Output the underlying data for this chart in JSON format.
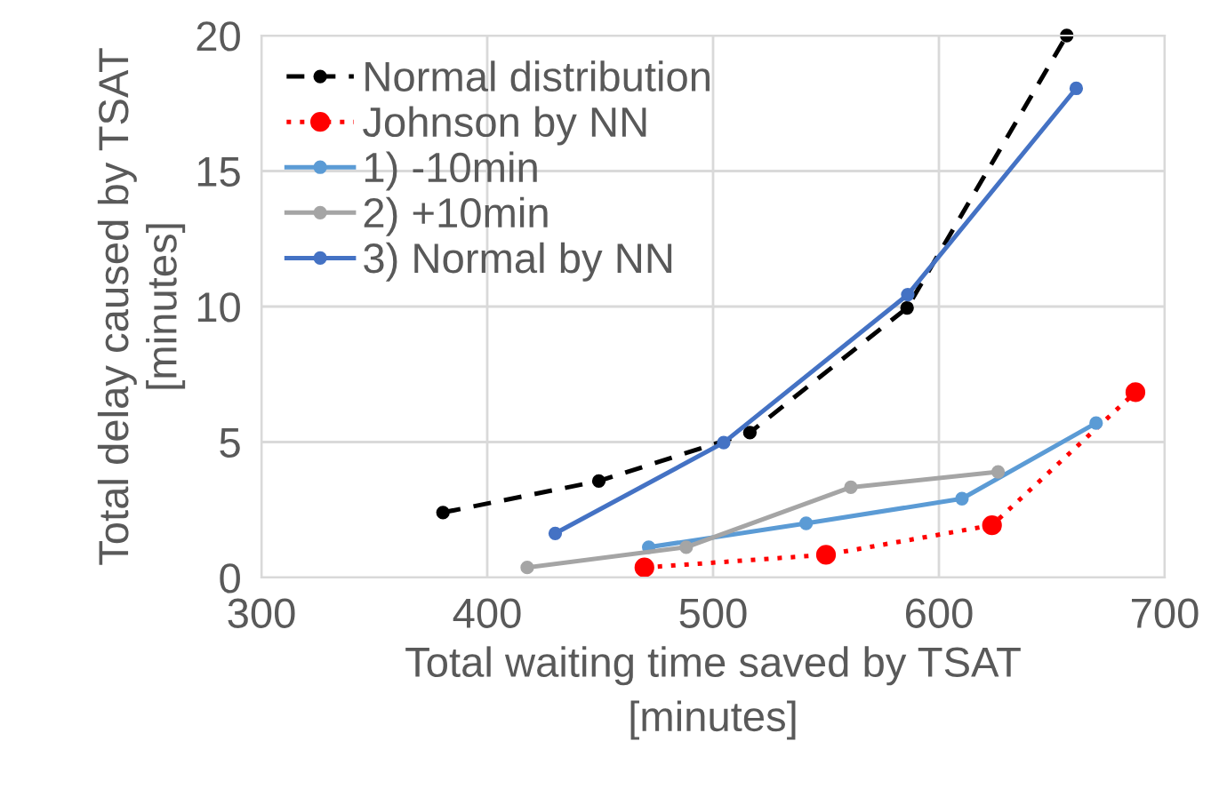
{
  "chart_data": {
    "type": "line",
    "xlabel": "Total waiting time saved by TSAT\n[minutes]",
    "ylabel": "Total delay caused by TSAT\n[minutes]",
    "xlim": [
      300,
      700
    ],
    "xticks": [
      300,
      400,
      500,
      600,
      700
    ],
    "ylim": [
      0,
      20
    ],
    "yticks": [
      0,
      5,
      10,
      15,
      20
    ],
    "grid": true,
    "legend": "top left",
    "marker": "circle",
    "series": [
      {
        "name": "Normal distribution",
        "color": "#000000",
        "line_style": "dashed",
        "x": [
          380.4,
          449.4,
          516.3,
          585.9,
          656.6
        ],
        "values": [
          2.4,
          3.56,
          5.35,
          9.95,
          20
        ]
      },
      {
        "name": "Johnson by NN",
        "color": "#ff0000",
        "line_style": "dotted",
        "x": [
          469.6,
          550,
          623.5,
          687
        ],
        "values": [
          0.37,
          0.84,
          1.93,
          6.84
        ]
      },
      {
        "name": "1) -10min",
        "color": "#5b9bd5",
        "line_style": "solid",
        "x": [
          471.5,
          541.2,
          610.2,
          669.6
        ],
        "values": [
          1.12,
          2.0,
          2.91,
          5.7
        ]
      },
      {
        "name": "2) +10min",
        "color": "#a5a5a5",
        "line_style": "solid",
        "x": [
          417.7,
          488.1,
          561,
          626.2
        ],
        "values": [
          0.37,
          1.12,
          3.33,
          3.9
        ]
      },
      {
        "name": "3) Normal by NN",
        "color": "#4472c4",
        "line_style": "solid",
        "x": [
          430.1,
          504.7,
          586.2,
          660.8
        ],
        "values": [
          1.63,
          4.98,
          10.44,
          18.05
        ]
      }
    ]
  }
}
